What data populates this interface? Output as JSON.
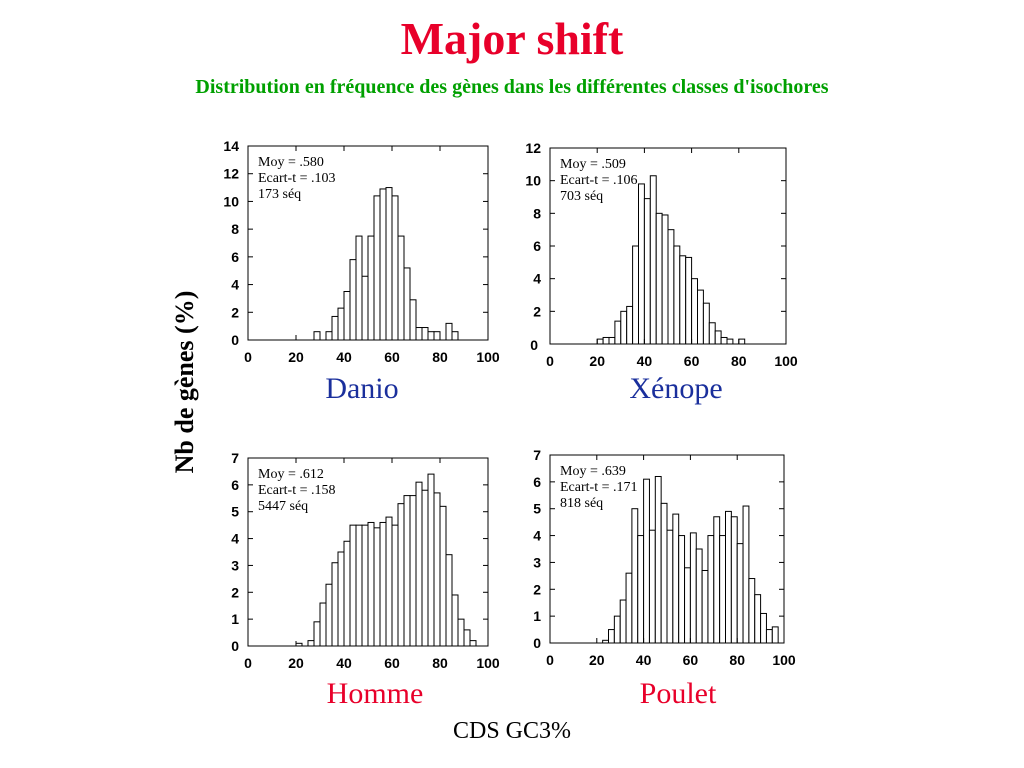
{
  "title": "Major shift",
  "subtitle": "Distribution en fréquence des gènes dans les différentes classes d'isochores",
  "ylabel": "Nb de gènes (%)",
  "xlabel": "CDS  GC3%",
  "colors": {
    "title": "#e8002a",
    "subtitle": "#00a000",
    "blue_label": "#1a2f9c",
    "red_label": "#e8002a"
  },
  "chart_data": [
    {
      "type": "bar",
      "name": "Danio",
      "label_color": "#1a2f9c",
      "xlim": [
        0,
        100
      ],
      "ylim": [
        0,
        14
      ],
      "xticks": [
        "0",
        "20",
        "40",
        "60",
        "80",
        "100"
      ],
      "yticks": [
        "0",
        "2",
        "4",
        "6",
        "8",
        "10",
        "12",
        "14"
      ],
      "stats": [
        "Moy = .580",
        "Ecart-t = .103",
        "173 séq"
      ],
      "bin_width": 2.5,
      "bins": [
        [
          27.5,
          0.6
        ],
        [
          30,
          0
        ],
        [
          32.5,
          0.6
        ],
        [
          35,
          1.7
        ],
        [
          37.5,
          2.3
        ],
        [
          40,
          3.5
        ],
        [
          42.5,
          5.8
        ],
        [
          45,
          7.5
        ],
        [
          47.5,
          4.6
        ],
        [
          50,
          7.5
        ],
        [
          52.5,
          10.4
        ],
        [
          55,
          10.9
        ],
        [
          57.5,
          11.0
        ],
        [
          60,
          10.4
        ],
        [
          62.5,
          7.5
        ],
        [
          65,
          5.2
        ],
        [
          67.5,
          2.9
        ],
        [
          70,
          0.9
        ],
        [
          72.5,
          0.9
        ],
        [
          75,
          0.6
        ],
        [
          77.5,
          0.6
        ],
        [
          80,
          0
        ],
        [
          82.5,
          1.2
        ],
        [
          85,
          0.6
        ]
      ]
    },
    {
      "type": "bar",
      "name": "Xénope",
      "label_color": "#1a2f9c",
      "xlim": [
        0,
        100
      ],
      "ylim": [
        0,
        12
      ],
      "xticks": [
        "0",
        "20",
        "40",
        "60",
        "80",
        "100"
      ],
      "yticks": [
        "2",
        "4",
        "6",
        "8",
        "10",
        "12"
      ],
      "y0_label": "0",
      "stats": [
        "Moy  = .509",
        "Ecart-t = .106",
        "703 séq"
      ],
      "bin_width": 2.5,
      "bins": [
        [
          20,
          0.3
        ],
        [
          22.5,
          0.4
        ],
        [
          25,
          0.4
        ],
        [
          27.5,
          1.4
        ],
        [
          30,
          2.0
        ],
        [
          32.5,
          2.3
        ],
        [
          35,
          6.0
        ],
        [
          37.5,
          9.8
        ],
        [
          40,
          8.9
        ],
        [
          42.5,
          10.3
        ],
        [
          45,
          8.0
        ],
        [
          47.5,
          7.9
        ],
        [
          50,
          7.0
        ],
        [
          52.5,
          6.0
        ],
        [
          55,
          5.4
        ],
        [
          57.5,
          5.3
        ],
        [
          60,
          4.0
        ],
        [
          62.5,
          3.3
        ],
        [
          65,
          2.5
        ],
        [
          67.5,
          1.3
        ],
        [
          70,
          0.8
        ],
        [
          72.5,
          0.4
        ],
        [
          75,
          0.3
        ],
        [
          77.5,
          0
        ],
        [
          80,
          0.3
        ]
      ]
    },
    {
      "type": "bar",
      "name": "Homme",
      "label_color": "#e8002a",
      "xlim": [
        0,
        100
      ],
      "ylim": [
        0,
        7
      ],
      "xticks": [
        "0",
        "20",
        "40",
        "60",
        "80",
        "100"
      ],
      "yticks": [
        "0",
        "1",
        "2",
        "3",
        "4",
        "5",
        "6",
        "7"
      ],
      "stats": [
        "Moy = .612",
        "Ecart-t = .158",
        "5447 séq"
      ],
      "bin_width": 2.5,
      "bins": [
        [
          20,
          0.1
        ],
        [
          22.5,
          0
        ],
        [
          25,
          0.2
        ],
        [
          27.5,
          0.9
        ],
        [
          30,
          1.6
        ],
        [
          32.5,
          2.3
        ],
        [
          35,
          3.1
        ],
        [
          37.5,
          3.5
        ],
        [
          40,
          3.9
        ],
        [
          42.5,
          4.5
        ],
        [
          45,
          4.5
        ],
        [
          47.5,
          4.5
        ],
        [
          50,
          4.6
        ],
        [
          52.5,
          4.4
        ],
        [
          55,
          4.6
        ],
        [
          57.5,
          4.8
        ],
        [
          60,
          4.5
        ],
        [
          62.5,
          5.3
        ],
        [
          65,
          5.6
        ],
        [
          67.5,
          5.6
        ],
        [
          70,
          6.1
        ],
        [
          72.5,
          5.8
        ],
        [
          75,
          6.4
        ],
        [
          77.5,
          5.7
        ],
        [
          80,
          5.2
        ],
        [
          82.5,
          3.4
        ],
        [
          85,
          1.9
        ],
        [
          87.5,
          1.0
        ],
        [
          90,
          0.6
        ],
        [
          92.5,
          0.2
        ]
      ]
    },
    {
      "type": "bar",
      "name": "Poulet",
      "label_color": "#e8002a",
      "xlim": [
        0,
        100
      ],
      "ylim": [
        0,
        7
      ],
      "xticks": [
        "0",
        "20",
        "40",
        "60",
        "80",
        "100"
      ],
      "yticks": [
        "0",
        "1",
        "2",
        "3",
        "4",
        "5",
        "6",
        "7"
      ],
      "stats": [
        "Moy = .639",
        "Ecart-t = .171",
        "818 séq"
      ],
      "bin_width": 2.5,
      "bins": [
        [
          22.5,
          0.1
        ],
        [
          25,
          0.5
        ],
        [
          27.5,
          1.0
        ],
        [
          30,
          1.6
        ],
        [
          32.5,
          2.6
        ],
        [
          35,
          5.0
        ],
        [
          37.5,
          4.0
        ],
        [
          40,
          6.1
        ],
        [
          42.5,
          4.2
        ],
        [
          45,
          6.2
        ],
        [
          47.5,
          5.2
        ],
        [
          50,
          4.2
        ],
        [
          52.5,
          4.8
        ],
        [
          55,
          4.0
        ],
        [
          57.5,
          2.8
        ],
        [
          60,
          4.1
        ],
        [
          62.5,
          3.5
        ],
        [
          65,
          2.7
        ],
        [
          67.5,
          4.0
        ],
        [
          70,
          4.7
        ],
        [
          72.5,
          4.0
        ],
        [
          75,
          4.9
        ],
        [
          77.5,
          4.7
        ],
        [
          80,
          3.7
        ],
        [
          82.5,
          5.1
        ],
        [
          85,
          2.4
        ],
        [
          87.5,
          1.8
        ],
        [
          90,
          1.1
        ],
        [
          92.5,
          0.5
        ],
        [
          95,
          0.6
        ]
      ]
    }
  ]
}
